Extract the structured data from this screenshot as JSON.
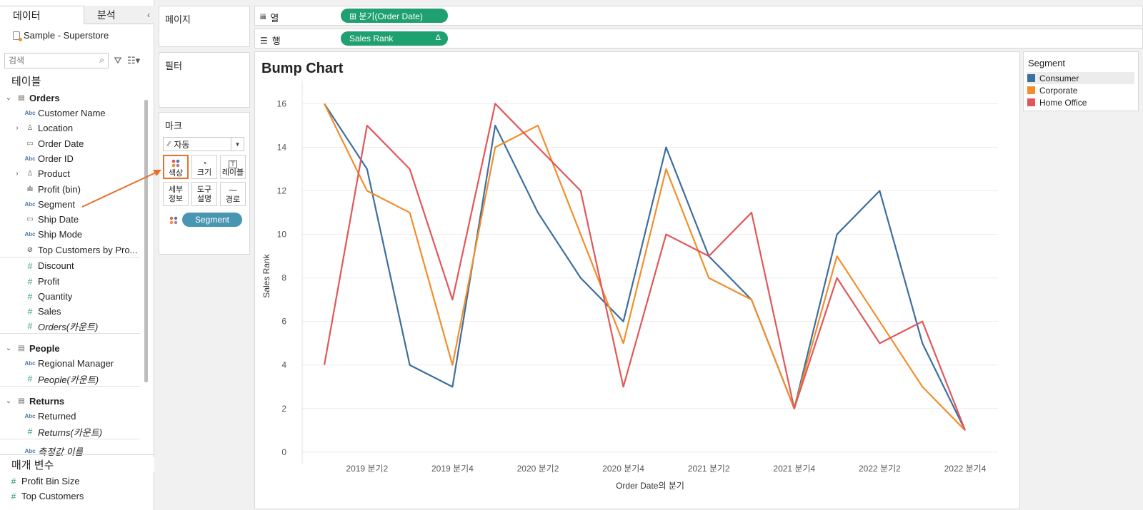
{
  "left_pane": {
    "tabs": [
      {
        "label": "데이터"
      },
      {
        "label": "분석"
      }
    ],
    "collapse_icon": "chevron-left-icon",
    "datasource": "Sample - Superstore",
    "search_placeholder": "검색",
    "tables_heading": "테이블",
    "tree": [
      {
        "kind": "table",
        "label": "Orders",
        "expanded": true
      },
      {
        "kind": "field",
        "type": "Abc",
        "label": "Customer Name"
      },
      {
        "kind": "field",
        "type": "hierarchy",
        "label": "Location",
        "expandable": true
      },
      {
        "kind": "field",
        "type": "date",
        "label": "Order Date"
      },
      {
        "kind": "field",
        "type": "Abc",
        "label": "Order ID"
      },
      {
        "kind": "field",
        "type": "hierarchy",
        "label": "Product",
        "expandable": true
      },
      {
        "kind": "field",
        "type": "bin",
        "label": "Profit (bin)"
      },
      {
        "kind": "field",
        "type": "Abc",
        "label": "Segment"
      },
      {
        "kind": "field",
        "type": "date",
        "label": "Ship Date"
      },
      {
        "kind": "field",
        "type": "Abc",
        "label": "Ship Mode"
      },
      {
        "kind": "field",
        "type": "set",
        "label": "Top Customers by Pro..."
      },
      {
        "kind": "field",
        "type": "measure",
        "label": "Discount"
      },
      {
        "kind": "field",
        "type": "measure",
        "label": "Profit"
      },
      {
        "kind": "field",
        "type": "measure",
        "label": "Quantity"
      },
      {
        "kind": "field",
        "type": "measure",
        "label": "Sales"
      },
      {
        "kind": "field",
        "type": "measure",
        "label": "Orders(카운트)",
        "italic": true
      },
      {
        "kind": "table",
        "label": "People",
        "expanded": true
      },
      {
        "kind": "field",
        "type": "Abc",
        "label": "Regional Manager"
      },
      {
        "kind": "field",
        "type": "measure",
        "label": "People(카운트)",
        "italic": true
      },
      {
        "kind": "table",
        "label": "Returns",
        "expanded": true
      },
      {
        "kind": "field",
        "type": "Abc",
        "label": "Returned"
      },
      {
        "kind": "field",
        "type": "measure",
        "label": "Returns(카운트)",
        "italic": true
      },
      {
        "kind": "field",
        "type": "Abc",
        "label": "측정값 이름",
        "italic": true
      }
    ],
    "params_heading": "매개 변수",
    "params": [
      {
        "label": "Profit Bin Size"
      },
      {
        "label": "Top Customers"
      }
    ]
  },
  "shelves": {
    "pages_label": "페이지",
    "filters_label": "필터",
    "marks_label": "마크",
    "mark_type": "자동",
    "mark_buttons": [
      {
        "label": "색상",
        "icon": "color-dots-icon",
        "selected": true
      },
      {
        "label": "크기",
        "icon": "size-icon"
      },
      {
        "label": "레이블",
        "icon": "label-icon"
      },
      {
        "label": "세부\n정보",
        "icon": "detail-icon"
      },
      {
        "label": "도구\n설명",
        "icon": "tooltip-icon"
      },
      {
        "label": "경로",
        "icon": "path-icon"
      }
    ],
    "color_pill": "Segment",
    "columns_label": "열",
    "columns_pill": "⊞ 분기(Order Date)",
    "rows_label": "행",
    "rows_pill": "Sales Rank",
    "rows_pill_icon": "Δ"
  },
  "legend": {
    "title": "Segment",
    "items": [
      {
        "label": "Consumer",
        "color": "#3c6e9f"
      },
      {
        "label": "Corporate",
        "color": "#f28e2b"
      },
      {
        "label": "Home Office",
        "color": "#e15759"
      }
    ]
  },
  "chart_data": {
    "type": "line",
    "title": "Bump Chart",
    "xlabel": "Order Date의 분기",
    "ylabel": "Sales Rank",
    "x": [
      "2019 분기1",
      "2019 분기2",
      "2019 분기3",
      "2019 분기4",
      "2020 분기1",
      "2020 분기2",
      "2020 분기3",
      "2020 분기4",
      "2021 분기1",
      "2021 분기2",
      "2021 분기3",
      "2021 분기4",
      "2022 분기1",
      "2022 분기2",
      "2022 분기3",
      "2022 분기4"
    ],
    "x_tick_labels": [
      "2019 분기2",
      "2019 분기4",
      "2020 분기2",
      "2020 분기4",
      "2021 분기2",
      "2021 분기4",
      "2022 분기2",
      "2022 분기4"
    ],
    "yticks": [
      0,
      2,
      4,
      6,
      8,
      10,
      12,
      14,
      16
    ],
    "ylim": [
      -0.3,
      16.8
    ],
    "grid": true,
    "legend": "right",
    "series": [
      {
        "name": "Consumer",
        "color": "#3c6e9f",
        "values": [
          16,
          13,
          4,
          3,
          15,
          11,
          8,
          6,
          14,
          9,
          7,
          2,
          10,
          12,
          5,
          1
        ]
      },
      {
        "name": "Corporate",
        "color": "#f28e2b",
        "values": [
          16,
          12,
          11,
          4,
          14,
          15,
          10,
          5,
          13,
          8,
          7,
          2,
          9,
          6,
          3,
          1
        ]
      },
      {
        "name": "Home Office",
        "color": "#e15759",
        "values": [
          4,
          15,
          13,
          7,
          16,
          14,
          12,
          3,
          10,
          9,
          11,
          2,
          8,
          5,
          6,
          1
        ]
      }
    ]
  },
  "annotation": {
    "arrow_color": "#e8702a",
    "points_to": "색상"
  }
}
